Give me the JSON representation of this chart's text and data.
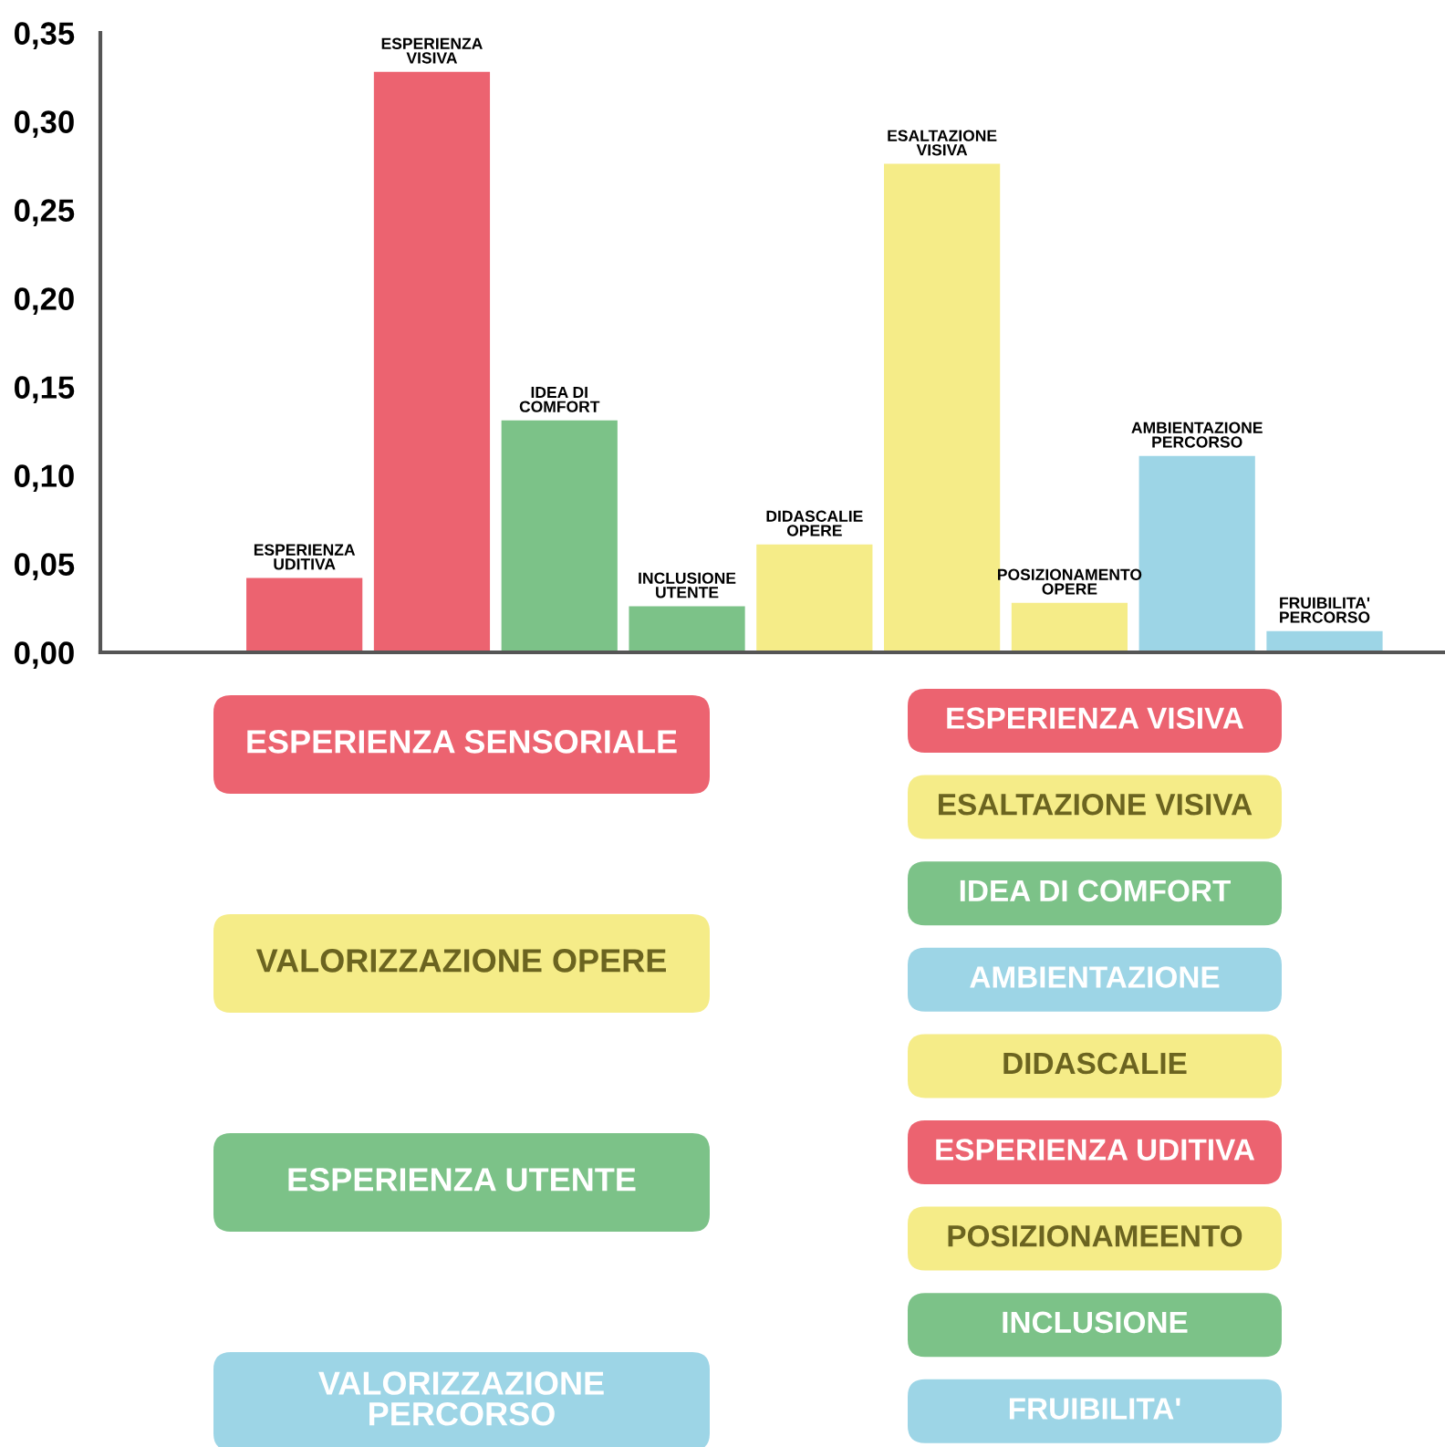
{
  "chart_data": {
    "type": "bar",
    "categories": [
      "ESPERIENZA UDITIVA",
      "ESPERIENZA VISIVA",
      "IDEA DI COMFORT",
      "INCLUSIONE UTENTE",
      "DIDASCALIE OPERE",
      "ESALTAZIONE VISIVA",
      "POSIZIONAMENTO OPERE",
      "AMBIENTAZIONE PERCORSO",
      "FRUIBILITA' PERCORSO"
    ],
    "series": [
      {
        "name": "ESPERIENZA SENSORIALE",
        "color": "#ec6370",
        "values": [
          0.042,
          0.328,
          null,
          null,
          null,
          null,
          null,
          null,
          null
        ]
      },
      {
        "name": "VALORIZZAZIONE OPERE",
        "color": "#f5ec88",
        "values": [
          null,
          null,
          null,
          null,
          0.061,
          0.276,
          0.028,
          null,
          null
        ]
      },
      {
        "name": "ESPERIENZA UTENTE",
        "color": "#7cc288",
        "values": [
          null,
          null,
          0.131,
          0.026,
          null,
          null,
          null,
          null,
          null
        ]
      },
      {
        "name": "VALORIZZAZIONE PERCORSO",
        "color": "#9dd5e6",
        "values": [
          null,
          null,
          null,
          null,
          null,
          null,
          null,
          0.111,
          0.012
        ]
      }
    ],
    "ylim": [
      0,
      0.35
    ],
    "yticks": [
      {
        "value": 0,
        "label": "0,00"
      },
      {
        "value": 0.05,
        "label": "0,05"
      },
      {
        "value": 0.1,
        "label": "0,10"
      },
      {
        "value": 0.15,
        "label": "0,15"
      },
      {
        "value": 0.2,
        "label": "0,20"
      },
      {
        "value": 0.25,
        "label": "0,25"
      },
      {
        "value": 0.3,
        "label": "0,30"
      },
      {
        "value": 0.35,
        "label": "0,35"
      }
    ],
    "tick_labels": "y",
    "grid": false,
    "legend": "bottom",
    "annotations": [
      "ESPERIENZA VISIVA",
      "ESALTAZIONE VISIVA",
      "IDEA DI COMFORT",
      "AMBIENTAZIONE",
      "DIDASCALIE",
      "ESPERIENZA UDITIVA",
      "POSIZIONAMEENTO",
      "INCLUSIONE",
      "FRUIBILITA'"
    ]
  }
}
